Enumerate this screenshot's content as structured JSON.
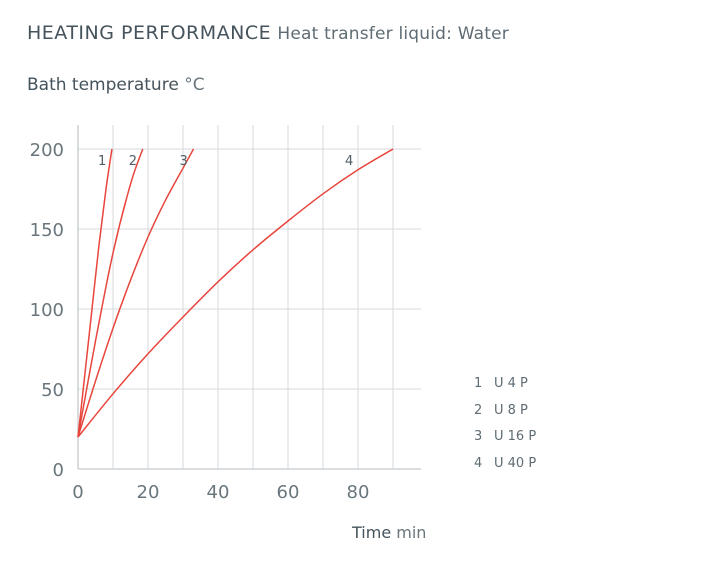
{
  "header": {
    "title": "HEATING PERFORMANCE",
    "subtitle": "Heat transfer liquid: Water"
  },
  "chart_data": {
    "type": "line",
    "title": "HEATING PERFORMANCE",
    "subtitle": "Heat transfer liquid: Water",
    "ylabel": "Bath temperature",
    "yunit": "°C",
    "xlabel": "Time",
    "xunit": "min",
    "xlim": [
      0,
      98
    ],
    "ylim": [
      0,
      215
    ],
    "xticks": [
      0,
      20,
      40,
      60,
      80
    ],
    "yticks": [
      0,
      50,
      100,
      150,
      200
    ],
    "grid": true,
    "line_color": "#e8453c",
    "legend_position": "right",
    "series": [
      {
        "name": "U 4 P",
        "label": "1",
        "x": [
          0,
          2,
          4,
          6,
          8,
          9.7
        ],
        "y": [
          20,
          60,
          100,
          140,
          175,
          200
        ]
      },
      {
        "name": "U 8 P",
        "label": "2",
        "x": [
          0,
          5,
          10,
          15,
          18.5
        ],
        "y": [
          20,
          80,
          135,
          178,
          200
        ]
      },
      {
        "name": "U 16 P",
        "label": "3",
        "x": [
          0,
          5,
          10,
          15,
          20,
          25,
          30,
          33
        ],
        "y": [
          20,
          55,
          88,
          118,
          145,
          168,
          188,
          200
        ]
      },
      {
        "name": "U 40 P",
        "label": "4",
        "x": [
          0,
          10,
          20,
          30,
          40,
          50,
          60,
          70,
          80,
          90
        ],
        "y": [
          20,
          47,
          72,
          95,
          117,
          137,
          155,
          172,
          187,
          200
        ]
      }
    ]
  }
}
